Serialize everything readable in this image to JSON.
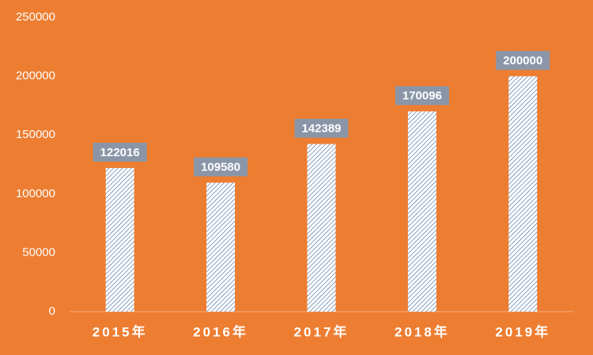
{
  "chart_data": {
    "type": "bar",
    "categories": [
      "2015年",
      "2016年",
      "2017年",
      "2018年",
      "2019年"
    ],
    "values": [
      122016,
      109580,
      142389,
      170096,
      200000
    ],
    "color": "#3d5f95",
    "ylim": [
      0,
      250000
    ],
    "yticks": [
      0,
      50000,
      100000,
      150000,
      200000,
      250000
    ],
    "grid": false
  }
}
